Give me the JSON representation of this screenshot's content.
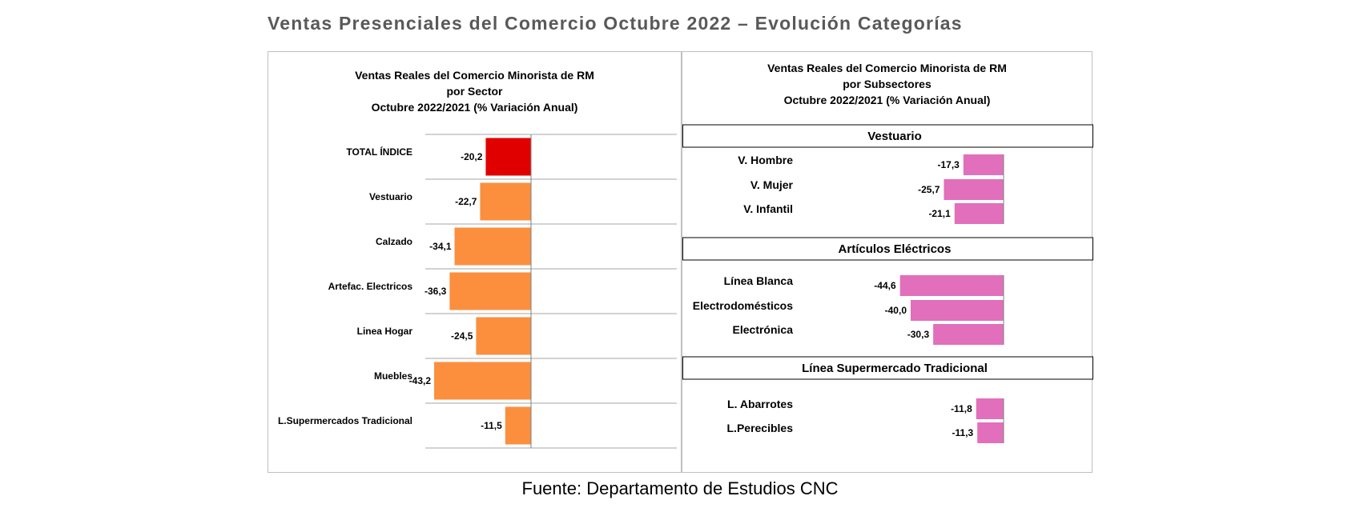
{
  "title": "Ventas Presenciales del Comercio Octubre 2022 – Evolución Categorías",
  "source": "Fuente: Departamento de Estudios CNC",
  "colors": {
    "total": "#e00000",
    "sector": "#fb8f3e",
    "subsector": "#e26fbb",
    "grid": "#a6a6a6"
  },
  "chart_data": [
    {
      "type": "bar",
      "orientation": "horizontal",
      "title": [
        "Ventas Reales del Comercio Minorista de RM",
        "por Sector",
        "Octubre 2022/2021 (% Variación Anual)"
      ],
      "categories": [
        "TOTAL ÍNDICE",
        "Vestuario",
        "Calzado",
        "Artefac. Electricos",
        "Linea Hogar",
        "Muebles",
        "L.Supermercados Tradicional"
      ],
      "values": [
        -20.2,
        -22.7,
        -34.1,
        -36.3,
        -24.5,
        -43.2,
        -11.5
      ],
      "value_labels": [
        "-20,2",
        "-22,7",
        "-34,1",
        "-36,3",
        "-24,5",
        "-43,2",
        "-11,5"
      ],
      "highlight": "TOTAL ÍNDICE",
      "xlim": [
        -100,
        0
      ]
    },
    {
      "type": "bar",
      "orientation": "horizontal",
      "title": [
        "Ventas Reales del Comercio Minorista de RM",
        "por Subsectores",
        "Octubre 2022/2021 (% Variación Anual)"
      ],
      "xlim": [
        -100,
        0
      ],
      "groups": [
        {
          "name": "Vestuario",
          "categories": [
            "V. Hombre",
            "V. Mujer",
            "V. Infantil"
          ],
          "values": [
            -17.3,
            -25.7,
            -21.1
          ],
          "value_labels": [
            "-17,3",
            "-25,7",
            "-21,1"
          ]
        },
        {
          "name": "Artículos Eléctricos",
          "categories": [
            "Línea Blanca",
            "Electrodomésticos",
            "Electrónica"
          ],
          "values": [
            -44.6,
            -40.0,
            -30.3
          ],
          "value_labels": [
            "-44,6",
            "-40,0",
            "-30,3"
          ]
        },
        {
          "name": "Línea Supermercado Tradicional",
          "categories": [
            "L. Abarrotes",
            "L.Perecibles"
          ],
          "values": [
            -11.8,
            -11.3
          ],
          "value_labels": [
            "-11,8",
            "-11,3"
          ]
        }
      ]
    }
  ]
}
